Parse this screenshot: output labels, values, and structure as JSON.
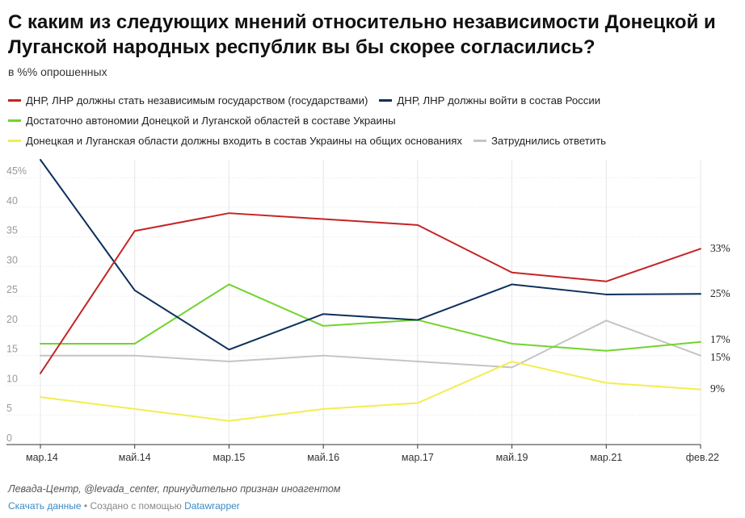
{
  "chart_data": {
    "type": "line",
    "title": "С каким из следующих мнений относительно независимости Донецкой и Луганской народных республик вы бы скорее согласились?",
    "subtitle": "в %% опрошенных",
    "categories": [
      "мар.14",
      "май.14",
      "мар.15",
      "май.16",
      "мар.17",
      "май.19",
      "мар.21",
      "фев.22"
    ],
    "y_ticks": [
      "45%",
      "40",
      "35",
      "30",
      "25",
      "20",
      "15",
      "10",
      "5",
      "0"
    ],
    "ylim": [
      0,
      48
    ],
    "series": [
      {
        "name": "ДНР, ЛНР должны стать независимым государством (государствами)",
        "color": "#c42424",
        "values": [
          12,
          36,
          39,
          38,
          37,
          29,
          27.5,
          33
        ],
        "end_label": "33%"
      },
      {
        "name": "ДНР, ЛНР должны войти в состав России",
        "color": "#0d2f5c",
        "values": [
          48,
          26,
          16,
          22,
          21,
          27,
          25.3,
          25.4
        ],
        "end_label": "25%"
      },
      {
        "name": "Достаточно автономии Донецкой и Луганской областей в составе Украины",
        "color": "#71d42c",
        "values": [
          17,
          17,
          27,
          20,
          21,
          17,
          15.8,
          17.3
        ],
        "end_label": "17%"
      },
      {
        "name": "Донецкая и Луганская области должны входить в состав Украины на общих основаниях",
        "color": "#f2ee4e",
        "values": [
          8,
          6,
          4,
          6,
          7,
          14,
          10.4,
          9.3
        ],
        "end_label": "9%"
      },
      {
        "name": "Затруднились ответить",
        "color": "#c4c4c4",
        "values": [
          15,
          15,
          14,
          15,
          14,
          13,
          20.9,
          15
        ],
        "end_label": "15%"
      }
    ]
  },
  "footer": {
    "source": "Левада-Центр, @levada_center, принудительно признан иноагентом",
    "download_label": "Скачать данные",
    "separator": " • ",
    "created_with": "Создано с помощью ",
    "datawrapper": "Datawrapper"
  }
}
